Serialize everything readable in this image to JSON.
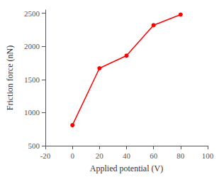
{
  "chart_data": {
    "type": "line",
    "xlabel": "Applied potential (V)",
    "ylabel": "Friction force (nN)",
    "x": [
      0,
      20,
      40,
      60,
      80
    ],
    "values": [
      810,
      1670,
      1860,
      2320,
      2480
    ],
    "color": "#ff0000",
    "marker": "circle",
    "xlim": [
      -20,
      100
    ],
    "ylim": [
      500,
      2550
    ],
    "xticks": [
      -20,
      0,
      20,
      40,
      60,
      80,
      100
    ],
    "yticks": [
      500,
      1000,
      1500,
      2000,
      2500
    ],
    "grid": false
  }
}
